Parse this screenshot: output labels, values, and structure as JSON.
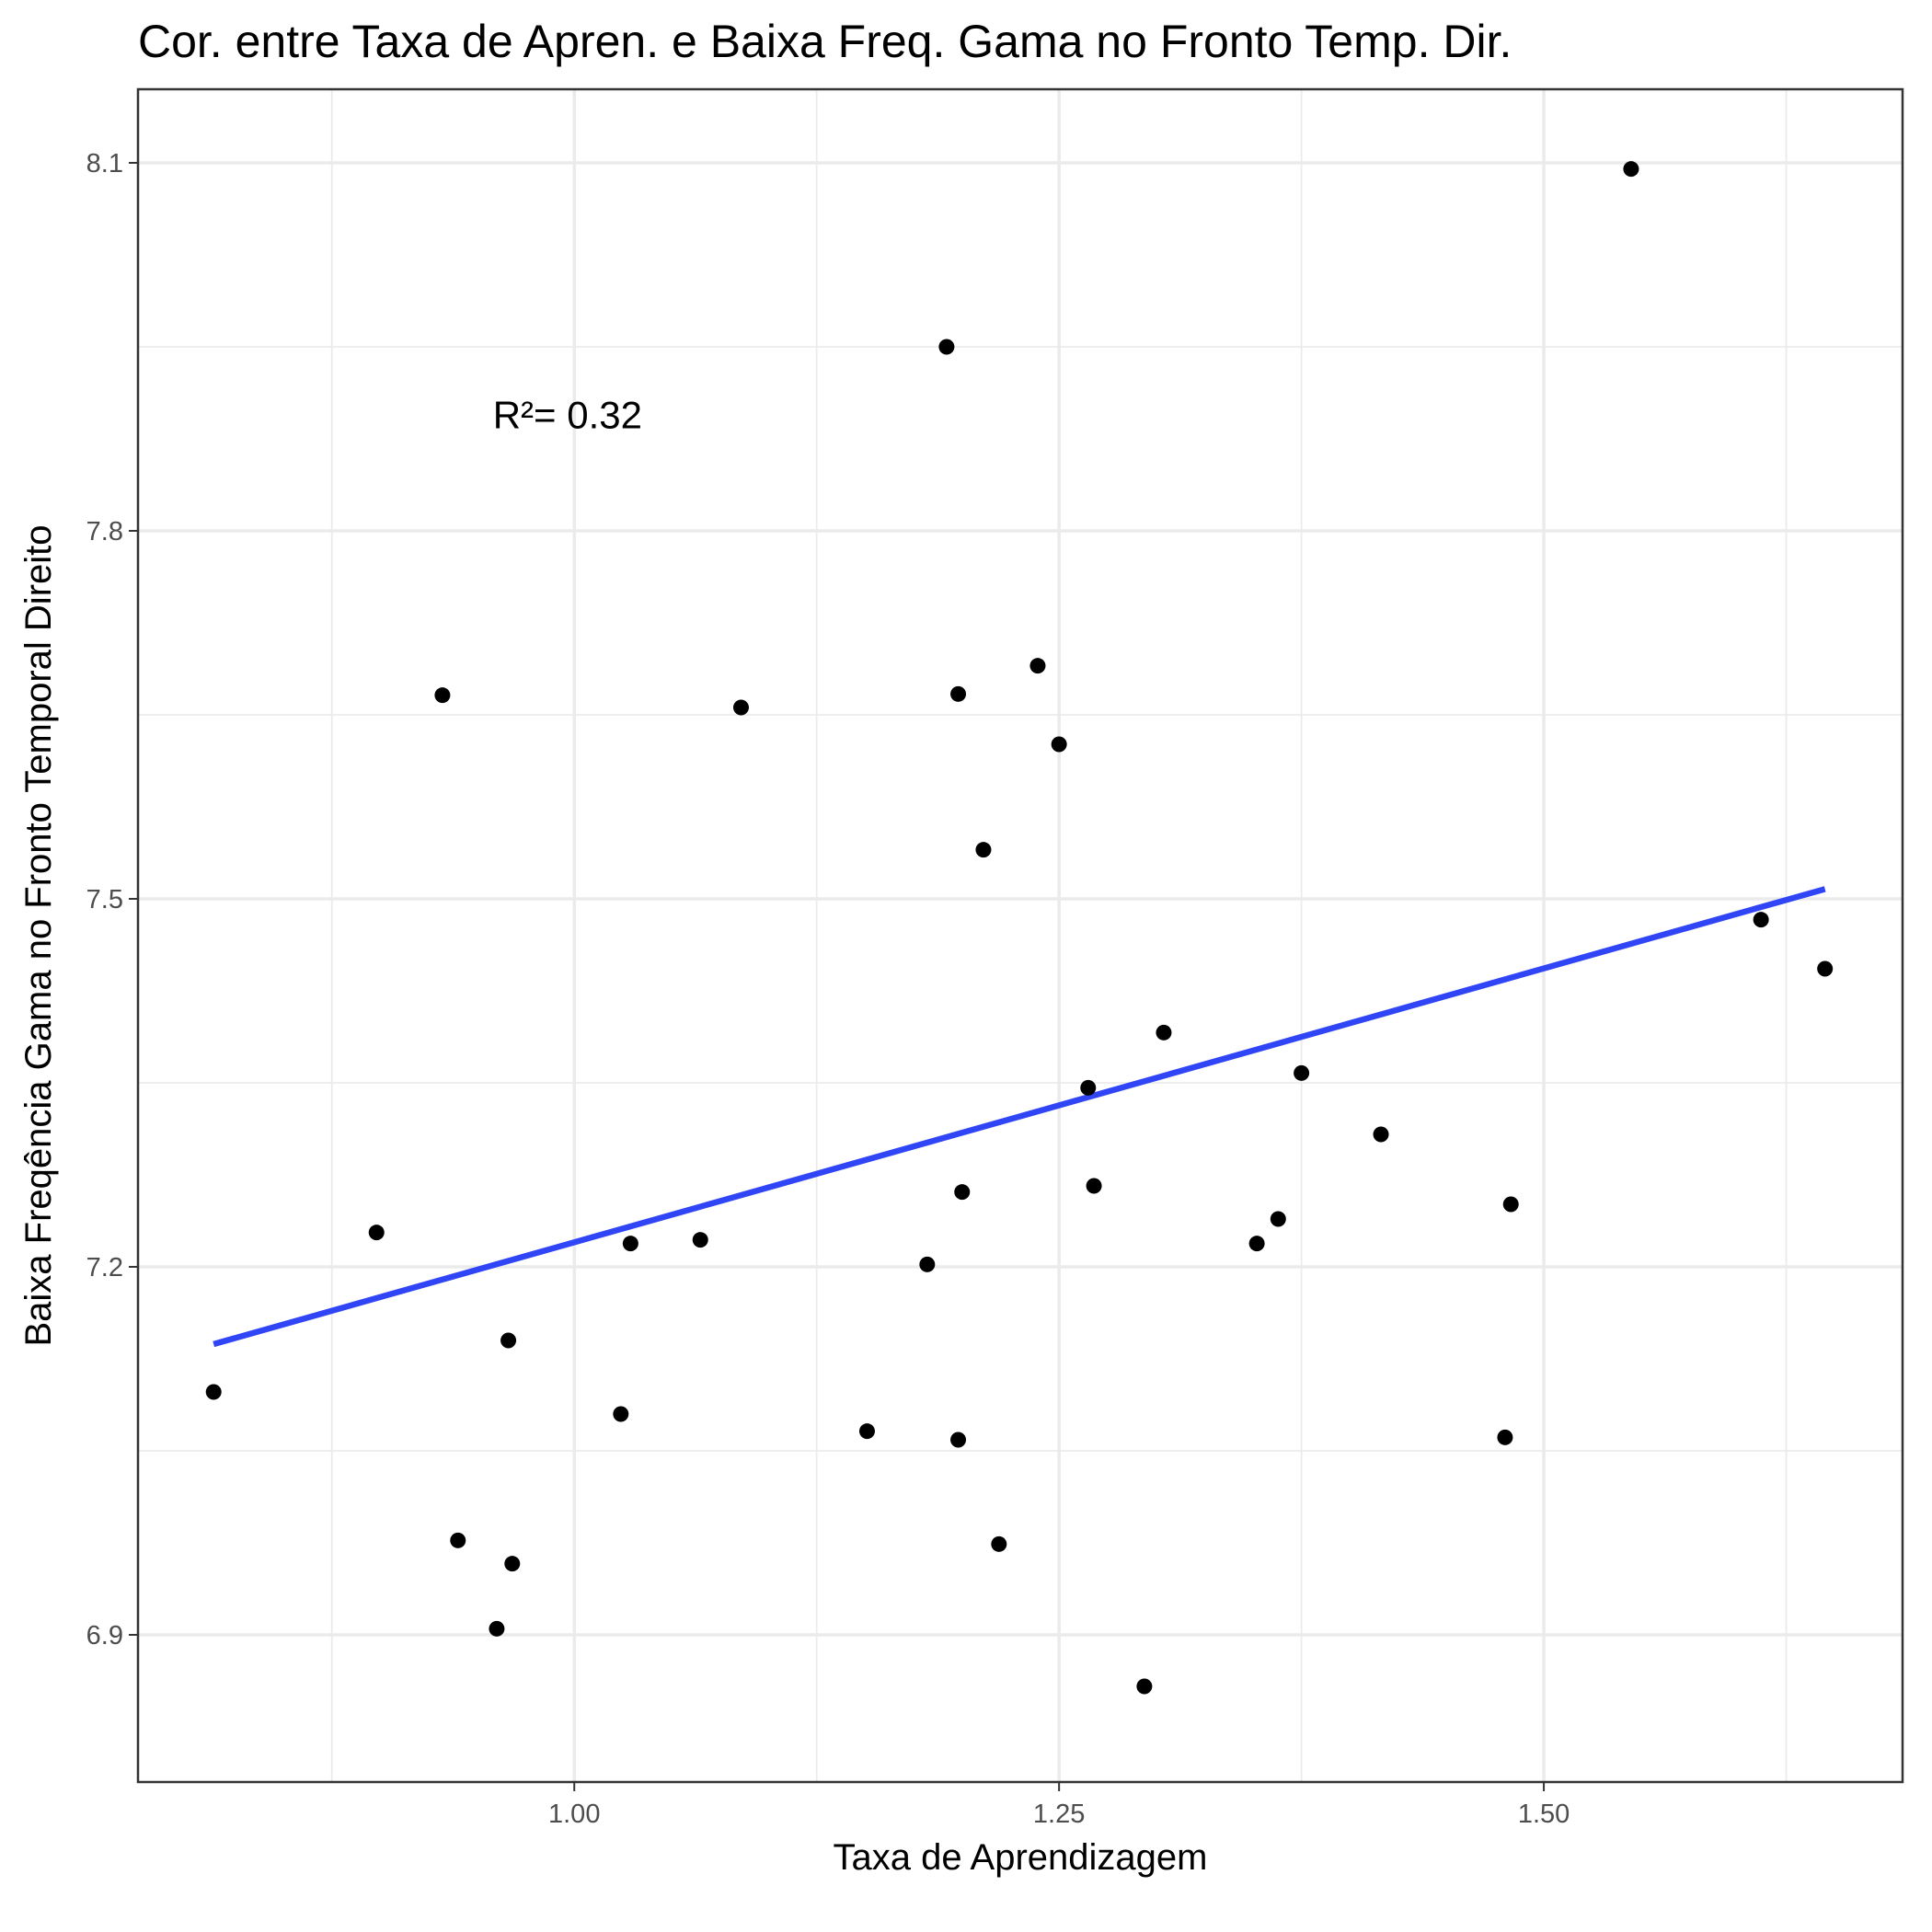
{
  "chart_data": {
    "type": "scatter",
    "title": "Cor. entre Taxa de Apren. e Baixa Freq. Gama no Fronto Temp. Dir.",
    "xlabel": "Taxa de Aprendizagem",
    "ylabel": "Baixa Freqência Gama no Fronto Temporal Direito",
    "xlim": [
      0.775,
      1.685
    ],
    "ylim": [
      6.78,
      8.16
    ],
    "x_ticks": [
      1.0,
      1.25,
      1.5
    ],
    "x_tick_labels": [
      "1.00",
      "1.25",
      "1.50"
    ],
    "x_minor_ticks": [
      0.875,
      1.125,
      1.375,
      1.625
    ],
    "y_ticks": [
      6.9,
      7.2,
      7.5,
      7.8,
      8.1
    ],
    "y_tick_labels": [
      "6.9",
      "7.2",
      "7.5",
      "7.8",
      "8.1"
    ],
    "y_minor_ticks": [
      7.05,
      7.35,
      7.65,
      7.95
    ],
    "grid": true,
    "point_color": "#000000",
    "line_color": "#3045f5",
    "points": [
      {
        "x": 0.814,
        "y": 7.098
      },
      {
        "x": 0.898,
        "y": 7.228
      },
      {
        "x": 0.932,
        "y": 7.666
      },
      {
        "x": 0.94,
        "y": 6.977
      },
      {
        "x": 0.96,
        "y": 6.905
      },
      {
        "x": 0.966,
        "y": 7.14
      },
      {
        "x": 0.968,
        "y": 6.958
      },
      {
        "x": 1.024,
        "y": 7.08
      },
      {
        "x": 1.029,
        "y": 7.219
      },
      {
        "x": 1.065,
        "y": 7.222
      },
      {
        "x": 1.086,
        "y": 7.656
      },
      {
        "x": 1.151,
        "y": 7.066
      },
      {
        "x": 1.182,
        "y": 7.202
      },
      {
        "x": 1.192,
        "y": 7.95
      },
      {
        "x": 1.198,
        "y": 7.059
      },
      {
        "x": 1.198,
        "y": 7.667
      },
      {
        "x": 1.2,
        "y": 7.261
      },
      {
        "x": 1.211,
        "y": 7.54
      },
      {
        "x": 1.219,
        "y": 6.974
      },
      {
        "x": 1.239,
        "y": 7.69
      },
      {
        "x": 1.25,
        "y": 7.626
      },
      {
        "x": 1.265,
        "y": 7.346
      },
      {
        "x": 1.268,
        "y": 7.266
      },
      {
        "x": 1.294,
        "y": 6.858
      },
      {
        "x": 1.304,
        "y": 7.391
      },
      {
        "x": 1.352,
        "y": 7.219
      },
      {
        "x": 1.363,
        "y": 7.239
      },
      {
        "x": 1.375,
        "y": 7.358
      },
      {
        "x": 1.416,
        "y": 7.308
      },
      {
        "x": 1.48,
        "y": 7.061
      },
      {
        "x": 1.483,
        "y": 7.251
      },
      {
        "x": 1.545,
        "y": 8.095
      },
      {
        "x": 1.612,
        "y": 7.483
      },
      {
        "x": 1.645,
        "y": 7.443
      }
    ],
    "regression_line": {
      "x": [
        0.814,
        1.645
      ],
      "y": [
        7.137,
        7.508
      ]
    },
    "annotation": {
      "text": "R²= 0.32",
      "x": 0.958,
      "y": 7.895
    }
  }
}
